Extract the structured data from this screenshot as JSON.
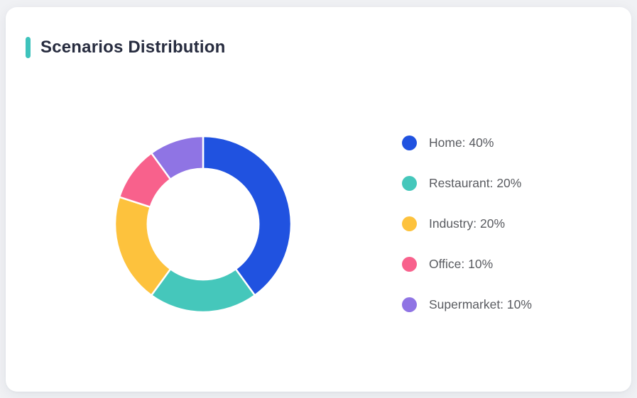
{
  "page": {
    "background_color": "#f0f1f4",
    "card_background": "#ffffff"
  },
  "header": {
    "title": "Scenarios Distribution",
    "title_color": "#272c3f",
    "accent_color": "#3ec3bc"
  },
  "chart_data": {
    "type": "pie",
    "variant": "donut",
    "title": "Scenarios Distribution",
    "categories": [
      "Home",
      "Restaurant",
      "Industry",
      "Office",
      "Supermarket"
    ],
    "values": [
      40,
      20,
      20,
      10,
      10
    ],
    "unit": "%",
    "colors": [
      "#2052e0",
      "#45c7bb",
      "#fdc23d",
      "#f8618c",
      "#8f74e4"
    ],
    "start_angle_deg": 0,
    "direction": "clockwise",
    "inner_radius_ratio": 0.63,
    "slice_gap_color": "#ffffff",
    "slice_gap_width": 2.5,
    "legend_position": "right"
  },
  "legend": {
    "items": [
      {
        "label": "Home: 40%",
        "color": "#2052e0"
      },
      {
        "label": "Restaurant: 20%",
        "color": "#45c7bb"
      },
      {
        "label": "Industry: 20%",
        "color": "#fdc23d"
      },
      {
        "label": "Office: 10%",
        "color": "#f8618c"
      },
      {
        "label": "Supermarket: 10%",
        "color": "#8f74e4"
      }
    ]
  }
}
